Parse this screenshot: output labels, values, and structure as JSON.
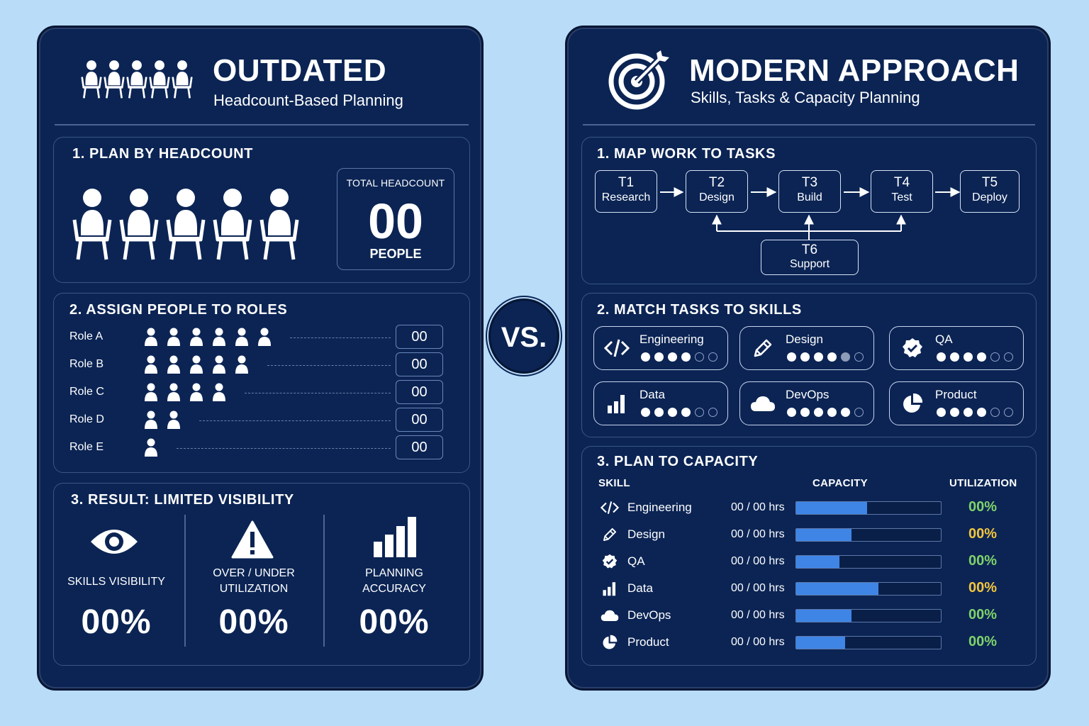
{
  "left": {
    "title": "OUTDATED",
    "subtitle": "Headcount-Based Planning",
    "icon": "people-seated-icon",
    "section1": {
      "title": "1. PLAN BY HEADCOUNT",
      "total_label": "TOTAL HEADCOUNT",
      "total_value": "00",
      "total_unit": "PEOPLE"
    },
    "section2": {
      "title": "2. ASSIGN PEOPLE TO ROLES",
      "roles": [
        {
          "label": "Role A",
          "people": 6,
          "count": "00"
        },
        {
          "label": "Role B",
          "people": 5,
          "count": "00"
        },
        {
          "label": "Role C",
          "people": 4,
          "count": "00"
        },
        {
          "label": "Role D",
          "people": 2,
          "count": "00"
        },
        {
          "label": "Role E",
          "people": 1,
          "count": "00"
        }
      ]
    },
    "section3": {
      "title": "3. RESULT: LIMITED VISIBILITY",
      "metrics": [
        {
          "icon": "eye-icon",
          "label": "SKILLS VISIBILITY",
          "value": "00%"
        },
        {
          "icon": "warning-icon",
          "label": "OVER / UNDER\nUTILIZATION",
          "value": "00%"
        },
        {
          "icon": "bar-chart-icon",
          "label": "PLANNING\nACCURACY",
          "value": "00%"
        }
      ]
    }
  },
  "vs": "VS.",
  "right": {
    "title": "MODERN APPROACH",
    "subtitle": "Skills, Tasks & Capacity Planning",
    "icon": "target-icon",
    "section1": {
      "title": "1. MAP WORK TO TASKS",
      "tasks": [
        {
          "id": "T1",
          "name": "Research"
        },
        {
          "id": "T2",
          "name": "Design"
        },
        {
          "id": "T3",
          "name": "Build"
        },
        {
          "id": "T4",
          "name": "Test"
        },
        {
          "id": "T5",
          "name": "Deploy"
        },
        {
          "id": "T6",
          "name": "Support"
        }
      ]
    },
    "section2": {
      "title": "2. MATCH TASKS TO SKILLS",
      "skills": [
        {
          "name": "Engineering",
          "icon": "code-icon",
          "level": 4,
          "half": false
        },
        {
          "name": "Design",
          "icon": "pencil-icon",
          "level": 4,
          "half": true
        },
        {
          "name": "QA",
          "icon": "verified-badge-icon",
          "level": 4,
          "half": false
        },
        {
          "name": "Data",
          "icon": "bar-chart-icon",
          "level": 4,
          "half": false
        },
        {
          "name": "DevOps",
          "icon": "cloud-icon",
          "level": 5,
          "half": false
        },
        {
          "name": "Product",
          "icon": "pie-chart-icon",
          "level": 4,
          "half": false
        }
      ]
    },
    "section3": {
      "title": "3. PLAN TO CAPACITY",
      "col_skill": "SKILL",
      "col_capacity": "CAPACITY",
      "col_utilization": "UTILIZATION",
      "rows": [
        {
          "name": "Engineering",
          "icon": "code-icon",
          "hours": "00 / 00 hrs",
          "fill": 0.49,
          "util": "00%",
          "util_color": "#7fd36a"
        },
        {
          "name": "Design",
          "icon": "pencil-icon",
          "hours": "00 / 00 hrs",
          "fill": 0.38,
          "util": "00%",
          "util_color": "#f2c53d"
        },
        {
          "name": "QA",
          "icon": "verified-badge-icon",
          "hours": "00 / 00 hrs",
          "fill": 0.3,
          "util": "00%",
          "util_color": "#7fd36a"
        },
        {
          "name": "Data",
          "icon": "bar-chart-icon",
          "hours": "00 / 00 hrs",
          "fill": 0.57,
          "util": "00%",
          "util_color": "#f2c53d"
        },
        {
          "name": "DevOps",
          "icon": "cloud-icon",
          "hours": "00 / 00 hrs",
          "fill": 0.38,
          "util": "00%",
          "util_color": "#7fd36a"
        },
        {
          "name": "Product",
          "icon": "pie-chart-icon",
          "hours": "00 / 00 hrs",
          "fill": 0.34,
          "util": "00%",
          "util_color": "#7fd36a"
        }
      ]
    }
  }
}
